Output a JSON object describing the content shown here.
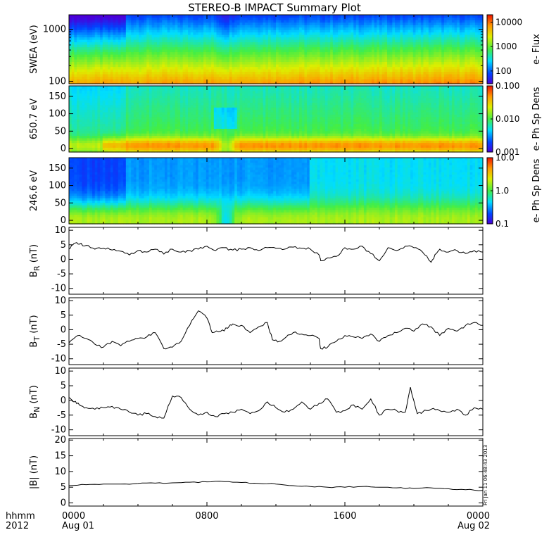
{
  "title": "STEREO-B IMPACT Summary Plot",
  "stamp": "Fri Jan 11 06:48:43 2013",
  "x_axis": {
    "left_labels": [
      "hhmm",
      "2012"
    ],
    "ticks": [
      {
        "label": "0000",
        "sub": "Aug 01",
        "t": 0
      },
      {
        "label": "0800",
        "sub": "",
        "t": 8
      },
      {
        "label": "1600",
        "sub": "",
        "t": 16
      },
      {
        "label": "0000",
        "sub": "Aug 02",
        "t": 24
      }
    ]
  },
  "chart_data": [
    {
      "type": "heatmap",
      "ylabel": "SWEA (eV)",
      "y_scale": "log",
      "yticks": [
        "1000",
        "100"
      ],
      "colorbar": {
        "label": "e- Flux",
        "scale": "log",
        "ticks": [
          "10000",
          "1000",
          "100"
        ],
        "range": [
          30,
          20000
        ]
      },
      "xlim": [
        0,
        24
      ]
    },
    {
      "type": "heatmap",
      "ylabel": "650.7 eV",
      "y_scale": "linear",
      "ylim": [
        -10,
        180
      ],
      "yticks": [
        "150",
        "100",
        "50",
        "0"
      ],
      "colorbar": {
        "label": "e- Ph Sp Dens",
        "scale": "log",
        "ticks": [
          "0.100",
          "0.010",
          "0.001"
        ],
        "range": [
          0.001,
          0.1
        ]
      },
      "xlim": [
        0,
        24
      ]
    },
    {
      "type": "heatmap",
      "ylabel": "246.6 eV",
      "y_scale": "linear",
      "ylim": [
        -10,
        180
      ],
      "yticks": [
        "150",
        "100",
        "50",
        "0"
      ],
      "colorbar": {
        "label": "e- Ph Sp Dens",
        "scale": "log",
        "ticks": [
          "10.0",
          "1.0",
          "0.1"
        ],
        "range": [
          0.1,
          10
        ]
      },
      "xlim": [
        0,
        24
      ]
    },
    {
      "type": "line",
      "ylabel": "B",
      "ylabel_sub": "R",
      "ylabel_unit": "(nT)",
      "ylim": [
        -12,
        11
      ],
      "yticks": [
        10,
        5,
        0,
        -5,
        -10
      ],
      "x": [
        0,
        0.3,
        0.6,
        1.0,
        1.5,
        2.0,
        2.5,
        3.0,
        3.5,
        4.0,
        4.5,
        5.0,
        5.5,
        6.0,
        6.5,
        7.0,
        7.5,
        8.0,
        8.5,
        9.0,
        9.5,
        10.0,
        10.5,
        11.0,
        11.5,
        12.0,
        12.5,
        13.0,
        13.5,
        14.0,
        14.5,
        14.6,
        15.0,
        15.5,
        16.0,
        16.5,
        17.0,
        17.5,
        18.0,
        18.5,
        19.0,
        19.5,
        20.0,
        20.5,
        21.0,
        21.3,
        21.5,
        22.0,
        22.5,
        23.0,
        23.5,
        24.0
      ],
      "y": [
        3.5,
        5.5,
        5.2,
        4.8,
        3.5,
        3.8,
        3.2,
        2.8,
        1.5,
        3.0,
        2.5,
        3.5,
        1.8,
        3.5,
        2.5,
        3.0,
        3.5,
        4.5,
        3.0,
        4.0,
        3.2,
        3.5,
        4.0,
        3.0,
        4.0,
        3.8,
        3.5,
        4.2,
        3.8,
        3.5,
        1.5,
        -0.5,
        0.5,
        1.0,
        4.0,
        3.5,
        4.5,
        2.0,
        -0.5,
        4.0,
        3.0,
        4.5,
        4.0,
        2.5,
        -1.0,
        2.0,
        3.5,
        2.5,
        3.0,
        2.0,
        3.0,
        2.5
      ]
    },
    {
      "type": "line",
      "ylabel": "B",
      "ylabel_sub": "T",
      "ylabel_unit": "(nT)",
      "ylim": [
        -12,
        11
      ],
      "yticks": [
        10,
        5,
        0,
        -5,
        -10
      ],
      "x": [
        0,
        0.5,
        1.0,
        1.5,
        2.0,
        2.5,
        3.0,
        3.5,
        4.0,
        4.5,
        5.0,
        5.5,
        6.0,
        6.5,
        7.0,
        7.5,
        8.0,
        8.3,
        8.8,
        9.2,
        9.5,
        10.0,
        10.5,
        11.0,
        11.5,
        11.8,
        12.2,
        12.6,
        13.0,
        13.5,
        14.0,
        14.5,
        14.6,
        15.0,
        15.5,
        16.0,
        16.5,
        17.0,
        17.5,
        18.0,
        18.5,
        19.0,
        19.5,
        20.0,
        20.5,
        21.0,
        21.5,
        22.0,
        22.5,
        23.0,
        23.5,
        24.0
      ],
      "y": [
        -4.5,
        -2.0,
        -3.0,
        -5.0,
        -6.0,
        -4.0,
        -5.5,
        -4.0,
        -3.0,
        -2.5,
        -1.0,
        -6.5,
        -6.0,
        -4.0,
        1.5,
        6.5,
        4.0,
        -1.0,
        -0.5,
        0.5,
        2.0,
        1.5,
        -1.0,
        1.0,
        2.5,
        -3.5,
        -4.0,
        -2.5,
        -1.0,
        -1.5,
        -2.0,
        -3.0,
        -6.5,
        -6.0,
        -4.0,
        -2.0,
        -2.5,
        -3.0,
        -1.5,
        -4.0,
        -2.0,
        -1.0,
        0.5,
        -0.5,
        2.0,
        1.0,
        -2.0,
        0.5,
        -0.5,
        1.5,
        2.5,
        1.5
      ]
    },
    {
      "type": "line",
      "ylabel": "B",
      "ylabel_sub": "N",
      "ylabel_unit": "(nT)",
      "ylim": [
        -12,
        11
      ],
      "yticks": [
        10,
        5,
        0,
        -5,
        -10
      ],
      "x": [
        0,
        0.3,
        0.6,
        1.0,
        1.5,
        2.0,
        2.5,
        3.0,
        3.5,
        4.0,
        4.5,
        5.0,
        5.5,
        6.0,
        6.5,
        7.0,
        7.5,
        8.0,
        8.5,
        9.0,
        9.5,
        10.0,
        10.5,
        11.0,
        11.5,
        12.0,
        12.5,
        13.0,
        13.5,
        14.0,
        14.5,
        15.0,
        15.5,
        16.0,
        16.5,
        17.0,
        17.5,
        18.0,
        18.5,
        19.0,
        19.5,
        19.8,
        20.2,
        20.5,
        21.0,
        21.5,
        22.0,
        22.5,
        23.0,
        23.5,
        24.0
      ],
      "y": [
        1.0,
        -0.5,
        -1.5,
        -2.5,
        -3.0,
        -2.5,
        -2.0,
        -3.0,
        -4.0,
        -5.0,
        -4.5,
        -5.5,
        -6.0,
        1.5,
        1.0,
        -3.0,
        -5.0,
        -4.0,
        -5.5,
        -4.5,
        -4.0,
        -3.0,
        -4.5,
        -3.5,
        -0.5,
        -2.5,
        -4.0,
        -3.0,
        -0.5,
        -3.0,
        -1.0,
        0.5,
        -4.0,
        -3.5,
        -1.5,
        -3.0,
        0.5,
        -5.0,
        -3.0,
        -3.5,
        -4.0,
        4.5,
        -4.5,
        -4.0,
        -3.0,
        -3.5,
        -4.0,
        -3.0,
        -5.0,
        -2.5,
        -3.0
      ]
    },
    {
      "type": "line",
      "ylabel": "|B|",
      "ylabel_sub": "",
      "ylabel_unit": "(nT)",
      "ylim": [
        -1,
        20.5
      ],
      "yticks": [
        20,
        15,
        10,
        5,
        0
      ],
      "x": [
        0,
        1,
        2,
        3,
        4,
        5,
        6,
        7,
        8,
        9,
        10,
        11,
        12,
        13,
        14,
        15,
        16,
        17,
        18,
        19,
        20,
        21,
        22,
        23,
        24
      ],
      "y": [
        5.5,
        5.8,
        6.0,
        6.0,
        6.2,
        6.3,
        6.4,
        6.6,
        6.7,
        6.8,
        6.5,
        6.2,
        6.0,
        5.5,
        5.2,
        5.0,
        5.0,
        5.2,
        5.0,
        4.8,
        4.6,
        4.8,
        4.5,
        4.2,
        4.0
      ]
    }
  ]
}
